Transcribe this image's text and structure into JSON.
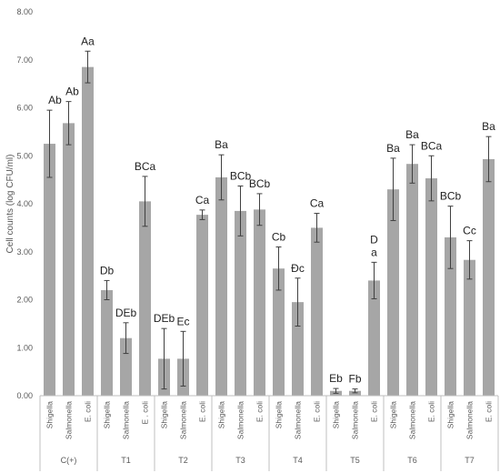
{
  "chart_data": {
    "type": "bar",
    "ylabel": "Cell counts (log CFU/ml)",
    "ylim": [
      0,
      8
    ],
    "yticks": [
      "0.00",
      "1.00",
      "2.00",
      "3.00",
      "4.00",
      "5.00",
      "6.00",
      "7.00",
      "8.00"
    ],
    "grid": false,
    "colors": {
      "bar": "#a6a6a6",
      "error": "#404040",
      "axis": "#bfbfbf",
      "text": "#595959"
    },
    "groups": [
      {
        "name": "C(+)",
        "bars": [
          {
            "category": "Shigella",
            "value": 5.25,
            "error": 0.7,
            "label": ""
          },
          {
            "category": "Salmonella",
            "value": 5.68,
            "error": 0.45,
            "label": ""
          },
          {
            "category": "E. coli",
            "value": 6.85,
            "error": 0.33,
            "label": "Aa"
          }
        ]
      },
      {
        "name": "T1",
        "bars": [
          {
            "category": "Shigella",
            "value": 2.2,
            "error": 0.2,
            "label": "Db"
          },
          {
            "category": "Salmonella",
            "value": 1.2,
            "error": 0.32,
            "label": "DEb"
          },
          {
            "category": "E . coli",
            "value": 4.05,
            "error": 0.52,
            "label": "BCa"
          }
        ]
      },
      {
        "name": "T2",
        "bars": [
          {
            "category": "Shigella",
            "value": 0.77,
            "error": 0.63,
            "label": "DEb"
          },
          {
            "category": "Salmonella",
            "value": 0.77,
            "error": 0.57,
            "label": "Ec"
          },
          {
            "category": "E. coli",
            "value": 3.77,
            "error": 0.1,
            "label": "Ca"
          }
        ]
      },
      {
        "name": "T3",
        "bars": [
          {
            "category": "Shigella",
            "value": 4.55,
            "error": 0.47,
            "label": "Ba"
          },
          {
            "category": "Salmonella",
            "value": 3.85,
            "error": 0.52,
            "label": "BCb"
          },
          {
            "category": "E. coli",
            "value": 3.88,
            "error": 0.33,
            "label": "BCb"
          }
        ]
      },
      {
        "name": "T4",
        "bars": [
          {
            "category": "Shigella",
            "value": 2.65,
            "error": 0.45,
            "label": "Cb"
          },
          {
            "category": "Salmonella",
            "value": 1.95,
            "error": 0.5,
            "label": "Đc"
          },
          {
            "category": "E. coli",
            "value": 3.5,
            "error": 0.3,
            "label": "Ca"
          }
        ]
      },
      {
        "name": "T5",
        "bars": [
          {
            "category": "Shigella",
            "value": 0.1,
            "error": 0.05,
            "label": "Eb"
          },
          {
            "category": "Salmonella",
            "value": 0.1,
            "error": 0.04,
            "label": "Fb"
          },
          {
            "category": "E. coli",
            "value": 2.4,
            "error": 0.38,
            "label": "D\na"
          }
        ]
      },
      {
        "name": "T6",
        "bars": [
          {
            "category": "Shigella",
            "value": 4.3,
            "error": 0.65,
            "label": "Ba"
          },
          {
            "category": "Salmonella",
            "value": 4.83,
            "error": 0.4,
            "label": "Ba"
          },
          {
            "category": "E. coli",
            "value": 4.53,
            "error": 0.47,
            "label": "BCa"
          }
        ]
      },
      {
        "name": "T7",
        "bars": [
          {
            "category": "Shigella",
            "value": 3.3,
            "error": 0.65,
            "label": "BCb"
          },
          {
            "category": "Salmonella",
            "value": 2.83,
            "error": 0.4,
            "label": "Cc"
          },
          {
            "category": "E. coli",
            "value": 4.93,
            "error": 0.47,
            "label": "Ba"
          }
        ]
      }
    ],
    "extra_labels": [
      {
        "group": 0,
        "text": "Ab"
      },
      {
        "group": 0,
        "text": "Ab"
      }
    ]
  }
}
